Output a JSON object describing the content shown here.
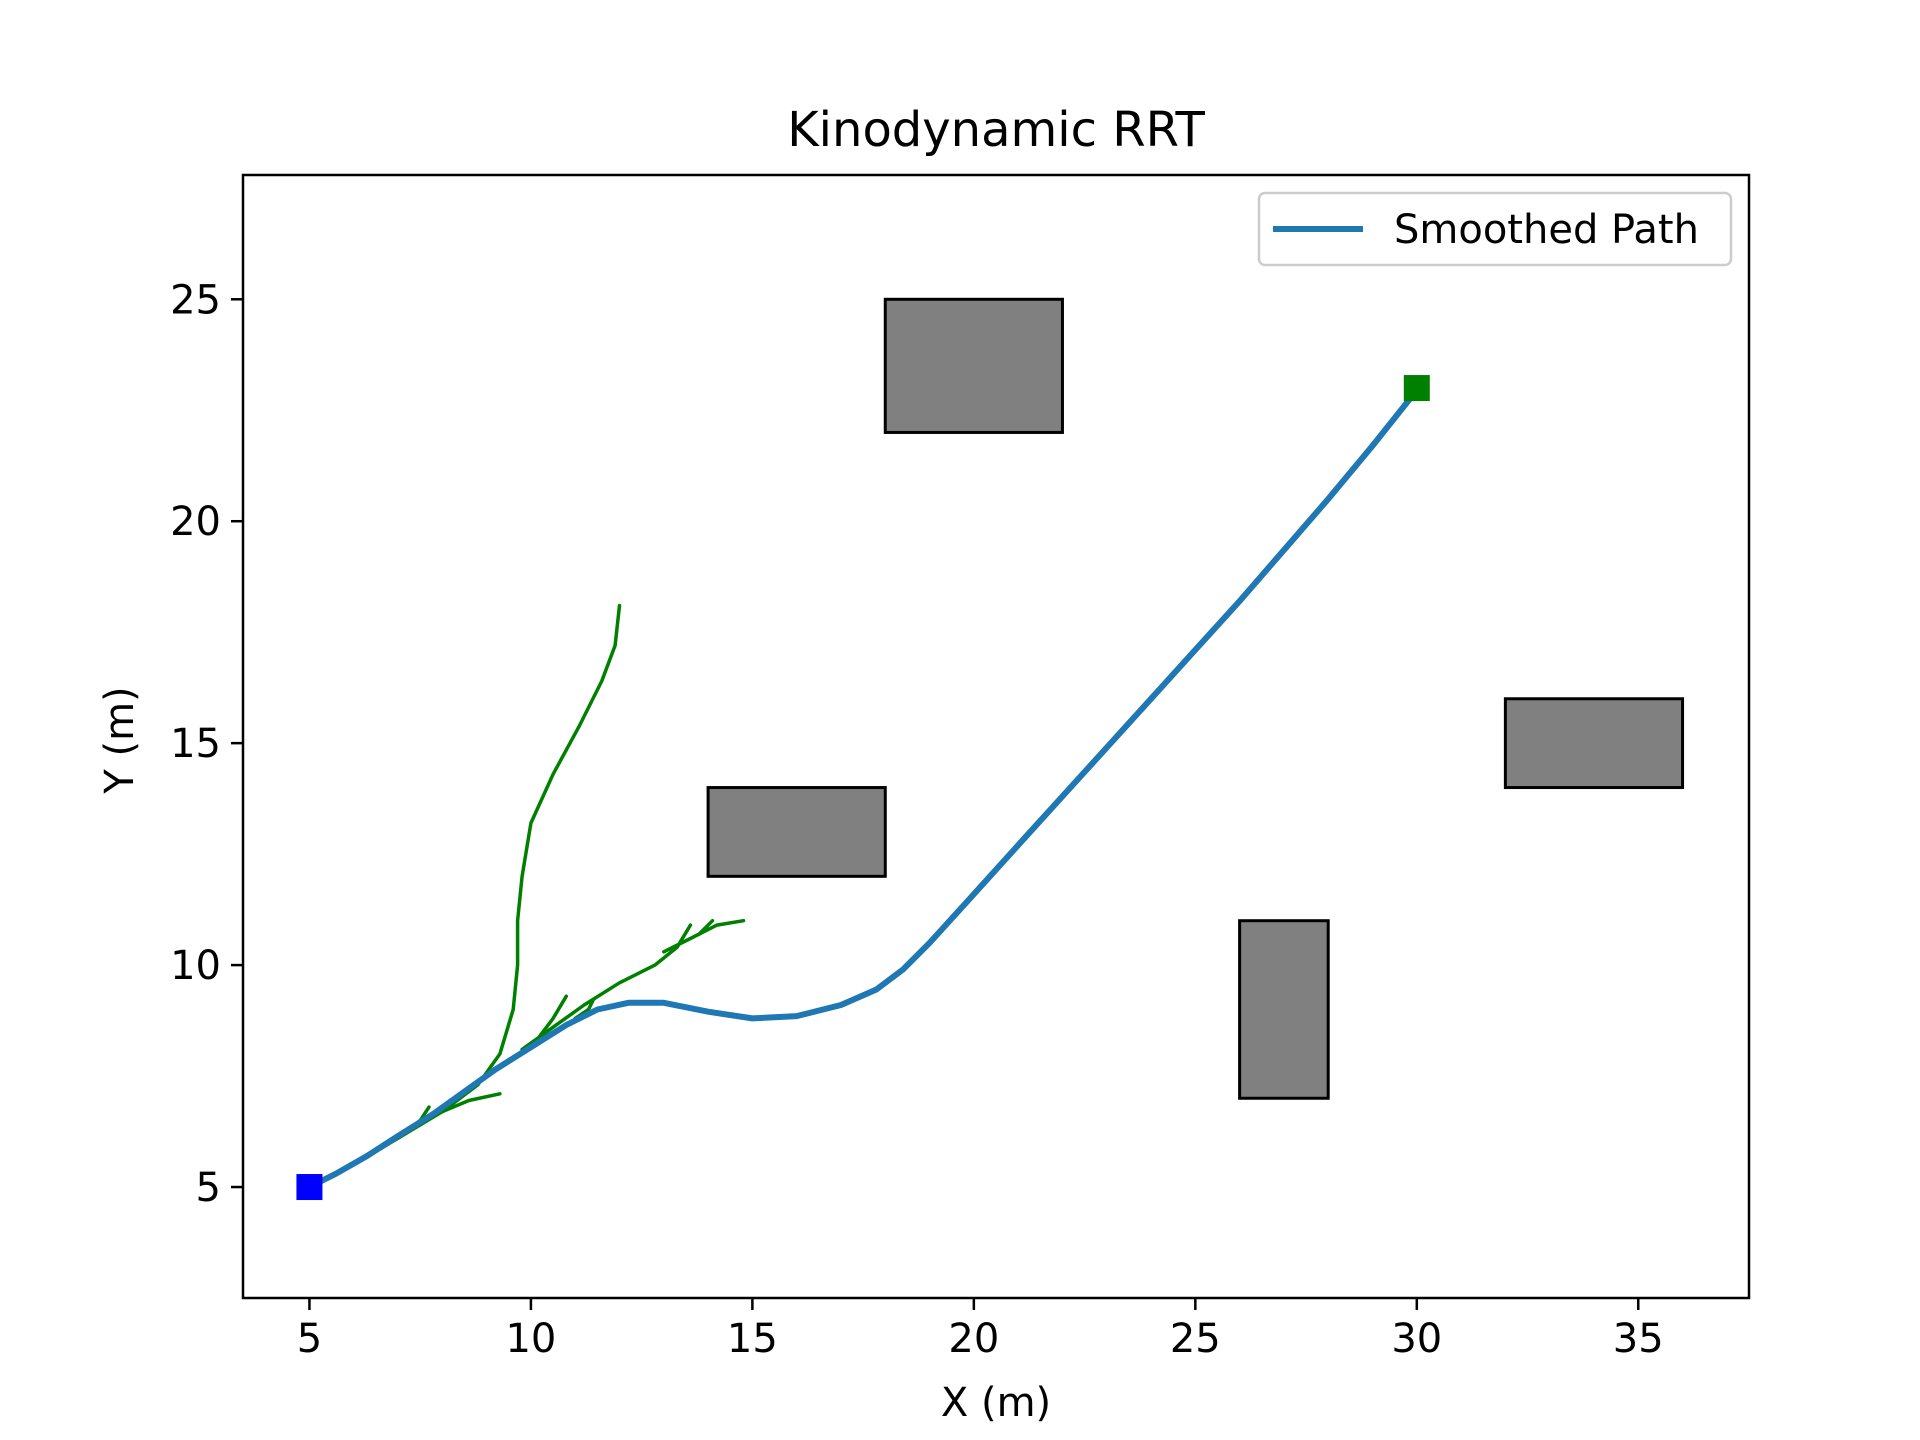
{
  "chart_data": {
    "type": "line",
    "title": "Kinodynamic RRT",
    "xlabel": "X (m)",
    "ylabel": "Y (m)",
    "xlim": [
      3.5,
      37.5
    ],
    "ylim": [
      2.5,
      27.8
    ],
    "xticks": [
      5,
      10,
      15,
      20,
      25,
      30,
      35
    ],
    "yticks": [
      5,
      10,
      15,
      20,
      25
    ],
    "grid": false,
    "legend": {
      "placement": "top-right",
      "entries": [
        "Smoothed Path"
      ]
    },
    "colors": {
      "tree": "#008000",
      "path": "#1f77b4",
      "start": "#0000ff",
      "goal": "#008000",
      "obstacle_fill": "#808080",
      "obstacle_edge": "#000000"
    },
    "obstacles": [
      {
        "x": 18,
        "y": 22,
        "w": 4,
        "h": 3
      },
      {
        "x": 14,
        "y": 12,
        "w": 4,
        "h": 2
      },
      {
        "x": 32,
        "y": 14,
        "w": 4,
        "h": 2
      },
      {
        "x": 26,
        "y": 7,
        "w": 2,
        "h": 4
      }
    ],
    "start": {
      "x": 5,
      "y": 5
    },
    "goal": {
      "x": 30,
      "y": 23
    },
    "tree_branches": [
      [
        [
          5.0,
          5.0
        ],
        [
          6.0,
          5.5
        ],
        [
          7.0,
          6.1
        ],
        [
          8.0,
          6.7
        ],
        [
          8.8,
          7.3
        ],
        [
          9.3,
          8.0
        ],
        [
          9.6,
          9.0
        ],
        [
          9.7,
          10.0
        ],
        [
          9.7,
          11.0
        ],
        [
          9.8,
          12.0
        ],
        [
          10.0,
          13.2
        ],
        [
          10.5,
          14.3
        ],
        [
          11.1,
          15.4
        ],
        [
          11.6,
          16.4
        ],
        [
          11.9,
          17.2
        ],
        [
          12.0,
          18.1
        ]
      ],
      [
        [
          7.0,
          6.1
        ],
        [
          7.5,
          6.5
        ],
        [
          7.7,
          6.8
        ]
      ],
      [
        [
          8.0,
          6.7
        ],
        [
          8.6,
          6.95
        ],
        [
          9.3,
          7.1
        ]
      ],
      [
        [
          9.8,
          8.1
        ],
        [
          10.5,
          8.6
        ],
        [
          11.2,
          9.1
        ],
        [
          12.0,
          9.6
        ],
        [
          12.8,
          10.0
        ],
        [
          13.3,
          10.4
        ],
        [
          13.6,
          10.9
        ]
      ],
      [
        [
          10.2,
          8.4
        ],
        [
          10.5,
          8.8
        ],
        [
          10.8,
          9.3
        ]
      ],
      [
        [
          11.0,
          8.8
        ],
        [
          11.3,
          9.0
        ],
        [
          11.4,
          9.2
        ]
      ],
      [
        [
          13.0,
          10.3
        ],
        [
          13.6,
          10.6
        ],
        [
          14.2,
          10.9
        ],
        [
          14.8,
          11.0
        ]
      ],
      [
        [
          13.8,
          10.7
        ],
        [
          14.1,
          11.0
        ]
      ]
    ],
    "series": [
      {
        "name": "Smoothed Path",
        "x": [
          5.0,
          5.6,
          6.3,
          7.0,
          7.8,
          8.5,
          9.2,
          10.0,
          10.8,
          11.5,
          12.2,
          13.0,
          14.0,
          15.0,
          16.0,
          17.0,
          17.8,
          18.4,
          19.0,
          20.0,
          21.0,
          22.0,
          23.0,
          24.0,
          25.0,
          26.0,
          27.0,
          28.0,
          29.0,
          30.0
        ],
        "y": [
          5.0,
          5.3,
          5.7,
          6.15,
          6.65,
          7.15,
          7.65,
          8.15,
          8.65,
          9.0,
          9.15,
          9.15,
          8.95,
          8.8,
          8.85,
          9.1,
          9.45,
          9.9,
          10.5,
          11.6,
          12.7,
          13.8,
          14.9,
          16.0,
          17.1,
          18.2,
          19.35,
          20.5,
          21.7,
          22.95
        ]
      }
    ]
  }
}
